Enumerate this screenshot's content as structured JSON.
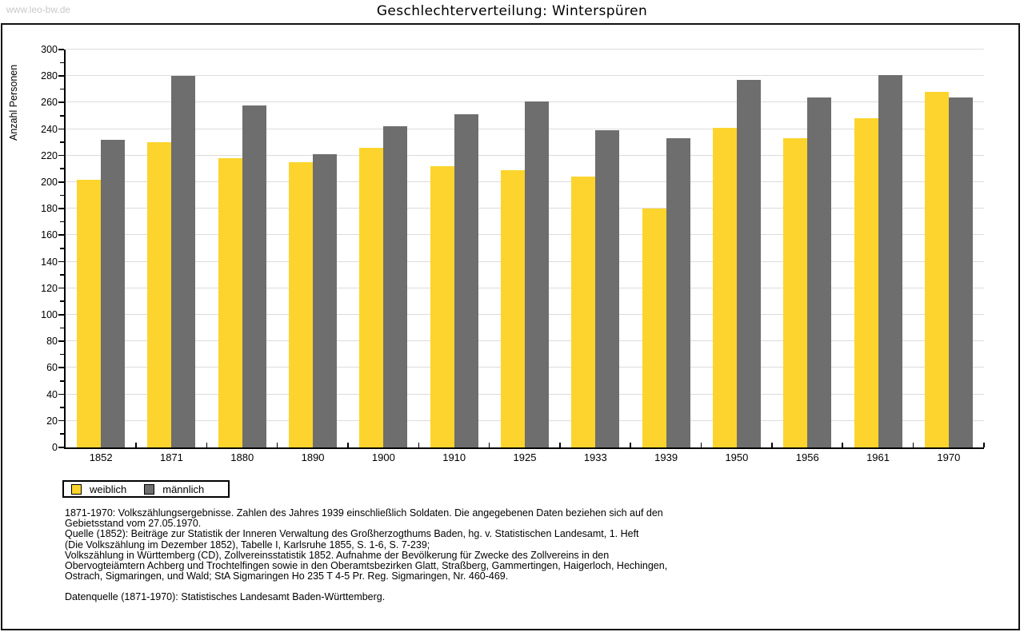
{
  "watermark": "www.leo-bw.de",
  "title": "Geschlechterverteilung: Winterspüren",
  "chart_data": {
    "type": "bar",
    "title": "Geschlechterverteilung: Winterspüren",
    "xlabel": "",
    "ylabel": "Anzahl Personen",
    "ylim": [
      0,
      300
    ],
    "y_ticks": [
      0,
      20,
      40,
      60,
      80,
      100,
      120,
      140,
      160,
      180,
      200,
      220,
      240,
      260,
      280,
      300
    ],
    "y_minor_tick_step": 10,
    "grid": "horizontal",
    "legend_position": "bottom-left",
    "categories": [
      "1852",
      "1871",
      "1880",
      "1890",
      "1900",
      "1910",
      "1925",
      "1933",
      "1939",
      "1950",
      "1956",
      "1961",
      "1970"
    ],
    "series": [
      {
        "name": "weiblich",
        "color": "#fcd42d",
        "values": [
          202,
          230,
          218,
          215,
          226,
          212,
          209,
          204,
          180,
          241,
          233,
          248,
          268
        ]
      },
      {
        "name": "männlich",
        "color": "#6e6e6e",
        "values": [
          232,
          280,
          258,
          221,
          242,
          251,
          261,
          239,
          233,
          277,
          264,
          281,
          264
        ]
      }
    ]
  },
  "colors": {
    "bar_weiblich": "#fcd42d",
    "bar_maennlich": "#6e6e6e",
    "gridline": "#dcdcdc",
    "axis": "#000000",
    "watermark": "#c9c9c9",
    "frame": "#111111"
  },
  "footer": {
    "lines": [
      "1871-1970: Volkszählungsergebnisse. Zahlen des Jahres 1939 einschließlich Soldaten. Die angegebenen Daten beziehen sich auf den",
      "Gebietsstand vom 27.05.1970.",
      "Quelle (1852): Beiträge zur Statistik der Inneren Verwaltung des Großherzogthums Baden, hg. v. Statistischen Landesamt, 1. Heft",
      "(Die Volkszählung im Dezember 1852), Tabelle I, Karlsruhe 1855, S. 1-6, S. 7-239;",
      "Volkszählung in Württemberg (CD), Zollvereinsstatistik 1852. Aufnahme der Bevölkerung für Zwecke des Zollvereins in den",
      "Obervogteiämtern Achberg und Trochtelfingen sowie in den Oberamtsbezirken Glatt, Straßberg, Gammertingen, Haigerloch, Hechingen,",
      "Ostrach, Sigmaringen, und Wald; StA Sigmaringen Ho 235 T 4-5 Pr. Reg. Sigmaringen, Nr. 460-469."
    ],
    "datenquelle": "Datenquelle (1871-1970): Statistisches Landesamt Baden-Württemberg."
  }
}
